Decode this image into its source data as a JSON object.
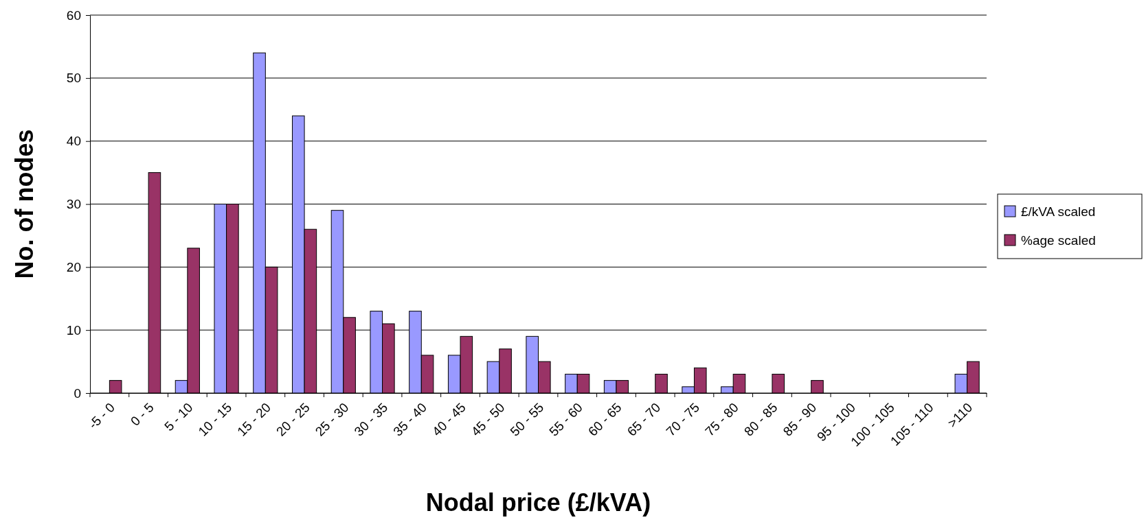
{
  "chart_data": {
    "type": "bar",
    "xlabel": "Nodal price (£/kVA)",
    "ylabel": "No. of nodes",
    "categories": [
      "-5 - 0",
      "0 - 5",
      "5 - 10",
      "10 - 15",
      "15 - 20",
      "20 - 25",
      "25 - 30",
      "30 - 35",
      "35 - 40",
      "40 - 45",
      "45 - 50",
      "50 - 55",
      "55 - 60",
      "60 - 65",
      "65 - 70",
      "70 - 75",
      "75 - 80",
      "80 - 85",
      "85 - 90",
      "95 - 100",
      "100 - 105",
      "105 - 110",
      ">110"
    ],
    "series": [
      {
        "name": "£/kVA scaled",
        "color": "#9999ff",
        "values": [
          0,
          0,
          2,
          30,
          54,
          44,
          29,
          13,
          13,
          6,
          5,
          9,
          3,
          2,
          0,
          1,
          1,
          0,
          0,
          0,
          0,
          0,
          3
        ]
      },
      {
        "name": "%age scaled",
        "color": "#993366",
        "values": [
          2,
          35,
          23,
          30,
          20,
          26,
          12,
          11,
          6,
          9,
          7,
          5,
          3,
          2,
          3,
          4,
          3,
          3,
          2,
          0,
          0,
          0,
          5
        ]
      }
    ],
    "ylim": [
      0,
      60
    ],
    "yticks": [
      0,
      10,
      20,
      30,
      40,
      50,
      60
    ],
    "grid": "y",
    "legend": "right"
  }
}
